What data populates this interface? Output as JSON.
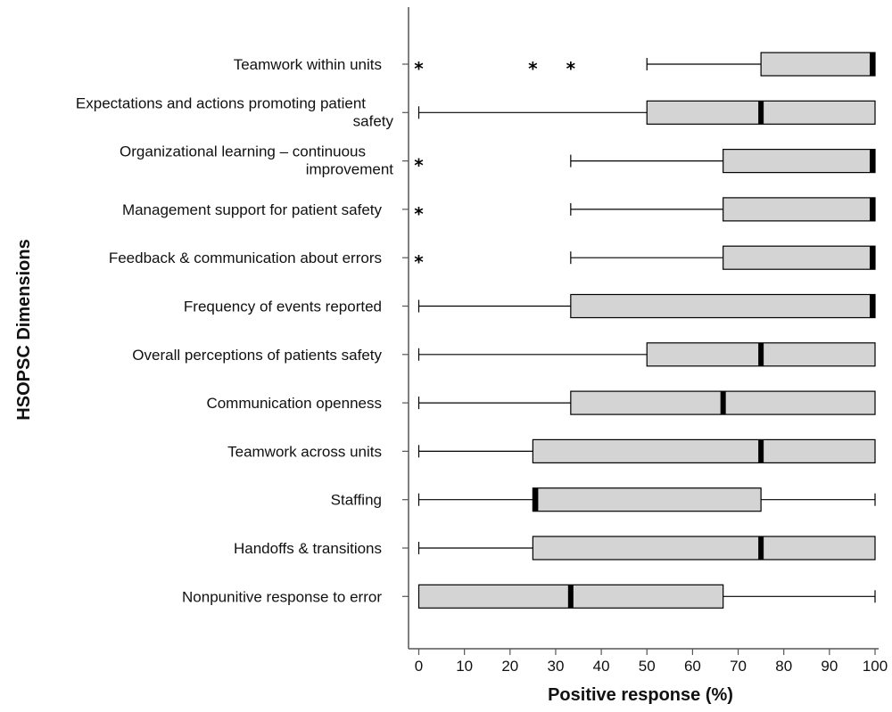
{
  "chart_data": {
    "type": "boxplot",
    "orientation": "horizontal",
    "xlabel": "Positive response (%)",
    "ylabel": "HSOPSC Dimensions",
    "xlim": [
      0,
      100
    ],
    "xticks": [
      0,
      10,
      20,
      30,
      40,
      50,
      60,
      70,
      80,
      90,
      100
    ],
    "grid": false,
    "colors": {
      "box_fill": "#d4d4d4",
      "stroke": "#000000",
      "median": "#000000"
    },
    "categories": [
      {
        "label_lines": [
          "Teamwork within units"
        ],
        "whisker_low": 50,
        "q1": 75,
        "median": 100,
        "q3": 100,
        "whisker_high": 100,
        "outliers": [
          0,
          25,
          33.3
        ]
      },
      {
        "label_lines": [
          "Expectations and actions promoting patient",
          "safety"
        ],
        "whisker_low": 0,
        "q1": 50,
        "median": 75,
        "q3": 100,
        "whisker_high": 100,
        "outliers": []
      },
      {
        "label_lines": [
          "Organizational learning – continuous",
          "improvement"
        ],
        "whisker_low": 33.3,
        "q1": 66.7,
        "median": 100,
        "q3": 100,
        "whisker_high": 100,
        "outliers": [
          0
        ]
      },
      {
        "label_lines": [
          "Management support for patient safety"
        ],
        "whisker_low": 33.3,
        "q1": 66.7,
        "median": 100,
        "q3": 100,
        "whisker_high": 100,
        "outliers": [
          0
        ]
      },
      {
        "label_lines": [
          "Feedback & communication about errors"
        ],
        "whisker_low": 33.3,
        "q1": 66.7,
        "median": 100,
        "q3": 100,
        "whisker_high": 100,
        "outliers": [
          0
        ]
      },
      {
        "label_lines": [
          "Frequency of events reported"
        ],
        "whisker_low": 0,
        "q1": 33.3,
        "median": 100,
        "q3": 100,
        "whisker_high": 100,
        "outliers": []
      },
      {
        "label_lines": [
          "Overall perceptions of patients safety"
        ],
        "whisker_low": 0,
        "q1": 50,
        "median": 75,
        "q3": 100,
        "whisker_high": 100,
        "outliers": []
      },
      {
        "label_lines": [
          "Communication openness"
        ],
        "whisker_low": 0,
        "q1": 33.3,
        "median": 66.7,
        "q3": 100,
        "whisker_high": 100,
        "outliers": []
      },
      {
        "label_lines": [
          "Teamwork across units"
        ],
        "whisker_low": 0,
        "q1": 25,
        "median": 75,
        "q3": 100,
        "whisker_high": 100,
        "outliers": []
      },
      {
        "label_lines": [
          "Staffing"
        ],
        "whisker_low": 0,
        "q1": 25,
        "median": 25,
        "q3": 75,
        "whisker_high": 100,
        "outliers": []
      },
      {
        "label_lines": [
          "Handoffs & transitions"
        ],
        "whisker_low": 0,
        "q1": 25,
        "median": 75,
        "q3": 100,
        "whisker_high": 100,
        "outliers": []
      },
      {
        "label_lines": [
          "Nonpunitive response to error"
        ],
        "whisker_low": 0,
        "q1": 0,
        "median": 33.3,
        "q3": 66.7,
        "whisker_high": 100,
        "outliers": []
      }
    ]
  }
}
